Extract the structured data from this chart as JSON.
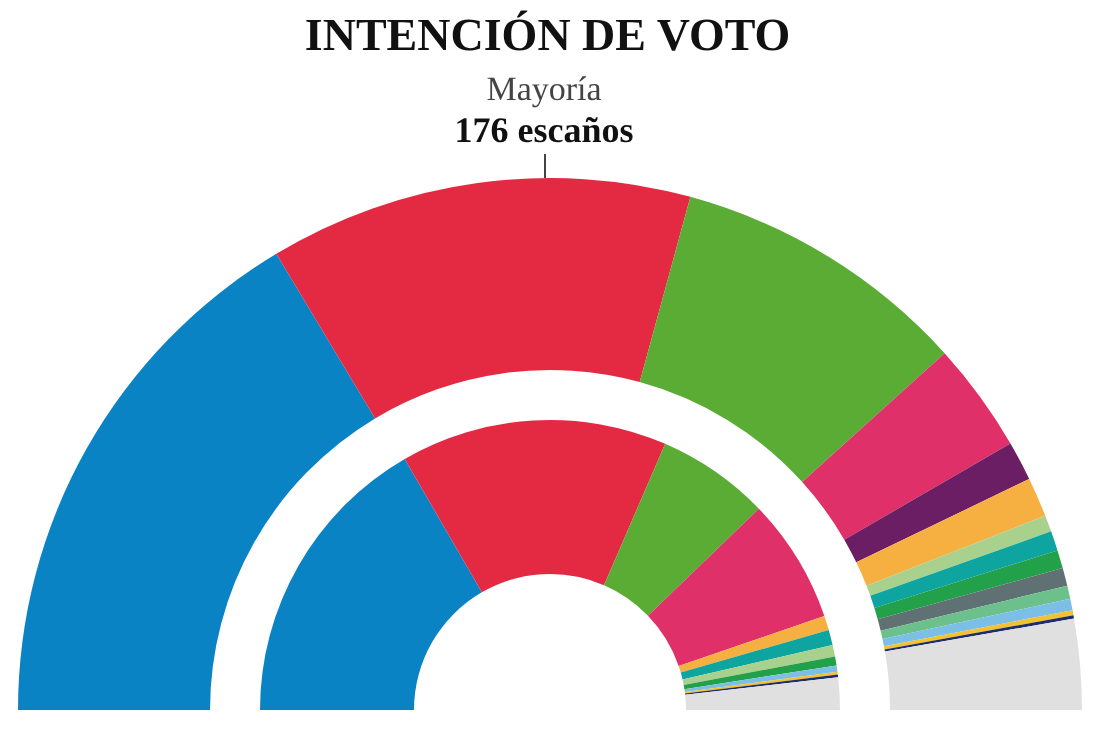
{
  "chart_data": [
    {
      "type": "donut",
      "title": "INTENCIÓN DE VOTO",
      "annotations": [
        "Mayoría",
        "176 escaños"
      ],
      "categories": [
        null,
        null,
        null,
        null,
        null,
        null,
        null,
        null,
        null,
        null,
        null,
        null,
        null,
        null,
        null
      ],
      "values": [
        32.8,
        25.7,
        18.1,
        6.7,
        2.4,
        2.4,
        1.0,
        1.2,
        1.1,
        1.1,
        0.8,
        0.7,
        0.3,
        0.2,
        5.5
      ],
      "colors": [
        "#0a83c4",
        "#e32a42",
        "#5aac35",
        "#e0306a",
        "#6b1e63",
        "#f5b041",
        "#a9d18e",
        "#0ea5a0",
        "#22a04a",
        "#5f7173",
        "#6cc08b",
        "#7bbfe6",
        "#f2c230",
        "#1f2d6b",
        "#e0e0e0"
      ]
    },
    {
      "type": "donut",
      "categories": [
        null,
        null,
        null,
        null,
        null,
        null,
        null,
        null,
        null,
        null,
        null,
        null
      ],
      "values": [
        33.3,
        29.7,
        12.6,
        13.9,
        1.6,
        1.7,
        1.3,
        1.0,
        0.7,
        0.3,
        0.3,
        3.6
      ],
      "colors": [
        "#0a83c4",
        "#e32a42",
        "#5aac35",
        "#e0306a",
        "#f5b041",
        "#0ea5a0",
        "#a9d18e",
        "#22a04a",
        "#7bbfe6",
        "#f2c230",
        "#1f2d6b",
        "#e0e0e0"
      ]
    }
  ]
}
